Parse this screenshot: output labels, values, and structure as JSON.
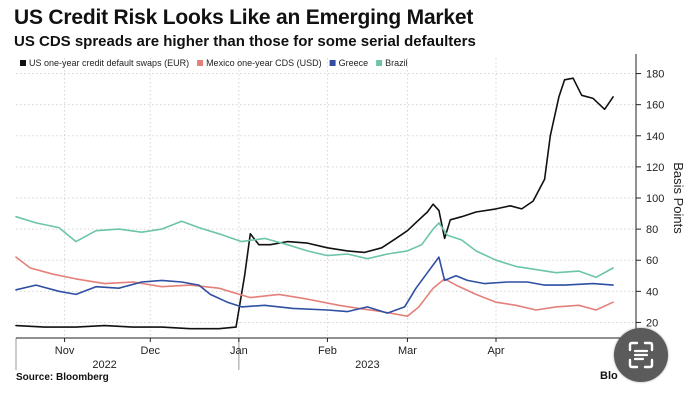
{
  "chart_data": {
    "type": "line",
    "title": "US Credit Risk Looks Like an Emerging Market",
    "subtitle": "US CDS spreads are higher than those for some serial defaulters",
    "ylabel": "Basis Points",
    "xlabel": "",
    "ylim": [
      10,
      190
    ],
    "yticks": [
      20,
      40,
      60,
      80,
      100,
      120,
      140,
      160,
      180
    ],
    "x_range": [
      "2022-10-15",
      "2023-05-20"
    ],
    "x_ticks": [
      {
        "date": "2022-11-01",
        "label": "Nov"
      },
      {
        "date": "2022-12-01",
        "label": "Dec"
      },
      {
        "date": "2023-01-01",
        "label": "Jan"
      },
      {
        "date": "2023-02-01",
        "label": "Feb"
      },
      {
        "date": "2023-03-01",
        "label": "Mar"
      },
      {
        "date": "2023-04-01",
        "label": "Apr"
      }
    ],
    "year_labels": [
      {
        "date": "2022-11-15",
        "label": "2022"
      },
      {
        "date": "2023-02-15",
        "label": "2023"
      }
    ],
    "year_dividers": [
      "2022-10-15",
      "2023-01-01"
    ],
    "grid": true,
    "legend_position": "top-left",
    "series": [
      {
        "name": "US one-year credit default swaps (EUR)",
        "color": "#111111",
        "points": [
          [
            "2022-10-15",
            18
          ],
          [
            "2022-10-25",
            17
          ],
          [
            "2022-11-05",
            17
          ],
          [
            "2022-11-15",
            18
          ],
          [
            "2022-11-25",
            17
          ],
          [
            "2022-12-05",
            17
          ],
          [
            "2022-12-15",
            16
          ],
          [
            "2022-12-25",
            16
          ],
          [
            "2022-12-31",
            17
          ],
          [
            "2023-01-03",
            50
          ],
          [
            "2023-01-05",
            77
          ],
          [
            "2023-01-08",
            70
          ],
          [
            "2023-01-12",
            70
          ],
          [
            "2023-01-18",
            72
          ],
          [
            "2023-01-25",
            71
          ],
          [
            "2023-02-01",
            68
          ],
          [
            "2023-02-08",
            66
          ],
          [
            "2023-02-14",
            65
          ],
          [
            "2023-02-20",
            68
          ],
          [
            "2023-02-25",
            74
          ],
          [
            "2023-03-01",
            79
          ],
          [
            "2023-03-05",
            86
          ],
          [
            "2023-03-08",
            91
          ],
          [
            "2023-03-10",
            96
          ],
          [
            "2023-03-12",
            92
          ],
          [
            "2023-03-14",
            74
          ],
          [
            "2023-03-16",
            86
          ],
          [
            "2023-03-20",
            88
          ],
          [
            "2023-03-25",
            91
          ],
          [
            "2023-04-01",
            93
          ],
          [
            "2023-04-06",
            95
          ],
          [
            "2023-04-10",
            93
          ],
          [
            "2023-04-14",
            98
          ],
          [
            "2023-04-18",
            112
          ],
          [
            "2023-04-20",
            140
          ],
          [
            "2023-04-23",
            165
          ],
          [
            "2023-04-25",
            176
          ],
          [
            "2023-04-28",
            177
          ],
          [
            "2023-05-01",
            166
          ],
          [
            "2023-05-05",
            164
          ],
          [
            "2023-05-09",
            157
          ],
          [
            "2023-05-12",
            165
          ]
        ]
      },
      {
        "name": "Mexico one-year CDS (USD)",
        "color": "#e4807a",
        "points": [
          [
            "2022-10-15",
            62
          ],
          [
            "2022-10-20",
            55
          ],
          [
            "2022-10-28",
            51
          ],
          [
            "2022-11-05",
            48
          ],
          [
            "2022-11-15",
            45
          ],
          [
            "2022-11-25",
            46
          ],
          [
            "2022-12-05",
            43
          ],
          [
            "2022-12-15",
            44
          ],
          [
            "2022-12-25",
            42
          ],
          [
            "2023-01-05",
            36
          ],
          [
            "2023-01-15",
            38
          ],
          [
            "2023-01-25",
            35
          ],
          [
            "2023-02-05",
            31
          ],
          [
            "2023-02-12",
            29
          ],
          [
            "2023-02-20",
            27
          ],
          [
            "2023-03-01",
            24
          ],
          [
            "2023-03-05",
            30
          ],
          [
            "2023-03-10",
            42
          ],
          [
            "2023-03-14",
            48
          ],
          [
            "2023-03-18",
            44
          ],
          [
            "2023-03-25",
            38
          ],
          [
            "2023-04-01",
            33
          ],
          [
            "2023-04-08",
            31
          ],
          [
            "2023-04-15",
            28
          ],
          [
            "2023-04-22",
            30
          ],
          [
            "2023-04-30",
            31
          ],
          [
            "2023-05-06",
            28
          ],
          [
            "2023-05-12",
            33
          ]
        ]
      },
      {
        "name": "Greece",
        "color": "#2f4fa3",
        "points": [
          [
            "2022-10-15",
            41
          ],
          [
            "2022-10-22",
            44
          ],
          [
            "2022-10-30",
            40
          ],
          [
            "2022-11-05",
            38
          ],
          [
            "2022-11-12",
            43
          ],
          [
            "2022-11-20",
            42
          ],
          [
            "2022-11-28",
            46
          ],
          [
            "2022-12-05",
            47
          ],
          [
            "2022-12-12",
            46
          ],
          [
            "2022-12-18",
            44
          ],
          [
            "2022-12-22",
            38
          ],
          [
            "2022-12-28",
            33
          ],
          [
            "2023-01-02",
            30
          ],
          [
            "2023-01-10",
            31
          ],
          [
            "2023-01-20",
            29
          ],
          [
            "2023-02-01",
            28
          ],
          [
            "2023-02-08",
            27
          ],
          [
            "2023-02-15",
            30
          ],
          [
            "2023-02-22",
            26
          ],
          [
            "2023-02-28",
            30
          ],
          [
            "2023-03-04",
            42
          ],
          [
            "2023-03-08",
            52
          ],
          [
            "2023-03-12",
            62
          ],
          [
            "2023-03-14",
            47
          ],
          [
            "2023-03-18",
            50
          ],
          [
            "2023-03-22",
            47
          ],
          [
            "2023-03-28",
            45
          ],
          [
            "2023-04-05",
            46
          ],
          [
            "2023-04-12",
            46
          ],
          [
            "2023-04-18",
            44
          ],
          [
            "2023-04-25",
            44
          ],
          [
            "2023-05-05",
            45
          ],
          [
            "2023-05-12",
            44
          ]
        ]
      },
      {
        "name": "Brazil",
        "color": "#6cc4ab",
        "points": [
          [
            "2022-10-15",
            88
          ],
          [
            "2022-10-22",
            84
          ],
          [
            "2022-10-30",
            81
          ],
          [
            "2022-11-05",
            72
          ],
          [
            "2022-11-12",
            79
          ],
          [
            "2022-11-20",
            80
          ],
          [
            "2022-11-28",
            78
          ],
          [
            "2022-12-05",
            80
          ],
          [
            "2022-12-12",
            85
          ],
          [
            "2022-12-18",
            81
          ],
          [
            "2022-12-25",
            77
          ],
          [
            "2023-01-02",
            72
          ],
          [
            "2023-01-10",
            74
          ],
          [
            "2023-01-18",
            70
          ],
          [
            "2023-01-25",
            66
          ],
          [
            "2023-02-01",
            63
          ],
          [
            "2023-02-08",
            64
          ],
          [
            "2023-02-15",
            61
          ],
          [
            "2023-02-22",
            64
          ],
          [
            "2023-03-01",
            66
          ],
          [
            "2023-03-06",
            70
          ],
          [
            "2023-03-10",
            80
          ],
          [
            "2023-03-12",
            84
          ],
          [
            "2023-03-15",
            76
          ],
          [
            "2023-03-20",
            73
          ],
          [
            "2023-03-25",
            66
          ],
          [
            "2023-04-01",
            60
          ],
          [
            "2023-04-08",
            56
          ],
          [
            "2023-04-15",
            54
          ],
          [
            "2023-04-22",
            52
          ],
          [
            "2023-04-30",
            53
          ],
          [
            "2023-05-06",
            49
          ],
          [
            "2023-05-12",
            55
          ]
        ]
      }
    ]
  },
  "footer": {
    "source": "Source: Bloomberg",
    "brand": "Blo"
  },
  "overlay": {
    "icon": "text-scan-icon"
  }
}
